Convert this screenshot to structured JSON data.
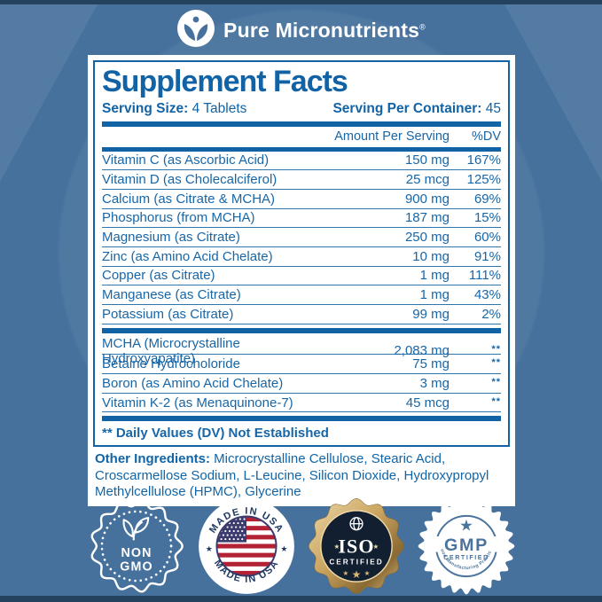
{
  "brand": {
    "name": "Pure Micronutrients",
    "reg": "®"
  },
  "facts": {
    "title": "Supplement Facts",
    "serving_size": {
      "label": "Serving Size:",
      "value": "4 Tablets"
    },
    "serving_per_container": {
      "label": "Serving Per Container:",
      "value": "45"
    },
    "columns": {
      "amount": "Amount Per Serving",
      "dv": "%DV"
    },
    "main_rows": [
      {
        "name": "Vitamin C (as Ascorbic Acid)",
        "amount": "150 mg",
        "dv": "167%"
      },
      {
        "name": "Vitamin D (as Cholecalciferol)",
        "amount": "25 mcg",
        "dv": "125%"
      },
      {
        "name": "Calcium (as Citrate & MCHA)",
        "amount": "900 mg",
        "dv": "69%"
      },
      {
        "name": "Phosphorus (from MCHA)",
        "amount": "187 mg",
        "dv": "15%"
      },
      {
        "name": "Magnesium (as Citrate)",
        "amount": "250 mg",
        "dv": "60%"
      },
      {
        "name": "Zinc (as Amino Acid Chelate)",
        "amount": "10 mg",
        "dv": "91%"
      },
      {
        "name": "Copper (as Citrate)",
        "amount": "1 mg",
        "dv": "111%"
      },
      {
        "name": "Manganese (as Citrate)",
        "amount": "1 mg",
        "dv": "43%"
      },
      {
        "name": "Potassium (as Citrate)",
        "amount": "99 mg",
        "dv": "2%"
      }
    ],
    "secondary_rows": [
      {
        "name": "MCHA (Microcrystalline Hydroxyapatite)",
        "amount": "2,083 mg",
        "dv": "**"
      },
      {
        "name": "Betaine Hydrocholoride",
        "amount": "75 mg",
        "dv": "**"
      },
      {
        "name": "Boron (as Amino Acid Chelate)",
        "amount": "3 mg",
        "dv": "**"
      },
      {
        "name": "Vitamin K-2 (as Menaquinone-7)",
        "amount": "45 mcg",
        "dv": "**"
      }
    ],
    "footnote": "** Daily Values (DV) Not Established",
    "other_ingredients": {
      "label": "Other Ingredients:",
      "value": " Microcrystalline Cellulose, Stearic Acid, Croscarmellose Sodium, L-Leucine, Silicon Dioxide, Hydroxypropyl Methylcellulose (HPMC), Glycerine"
    }
  },
  "badges": {
    "non_gmo": {
      "line1": "NON",
      "line2": "GMO"
    },
    "made_in_usa": {
      "top_text": "MADE IN USA",
      "bottom_text": "MADE IN USA",
      "side_star": "★"
    },
    "iso": {
      "title": "ISO",
      "subtitle": "CERTIFIED",
      "side_star": "★",
      "star": "★"
    },
    "gmp": {
      "title": "GMP",
      "subtitle": "CERTIFIED",
      "star": "★",
      "arc_text": "Good Manufacturing Practices"
    }
  },
  "colors": {
    "background": "#46719d",
    "dark_navy": "#24415e",
    "label_blue": "#1263a5",
    "row_blue": "#2e77ae",
    "gold": "#c9a35f",
    "flag_red": "#b22234",
    "flag_navy": "#3c3b6e"
  }
}
